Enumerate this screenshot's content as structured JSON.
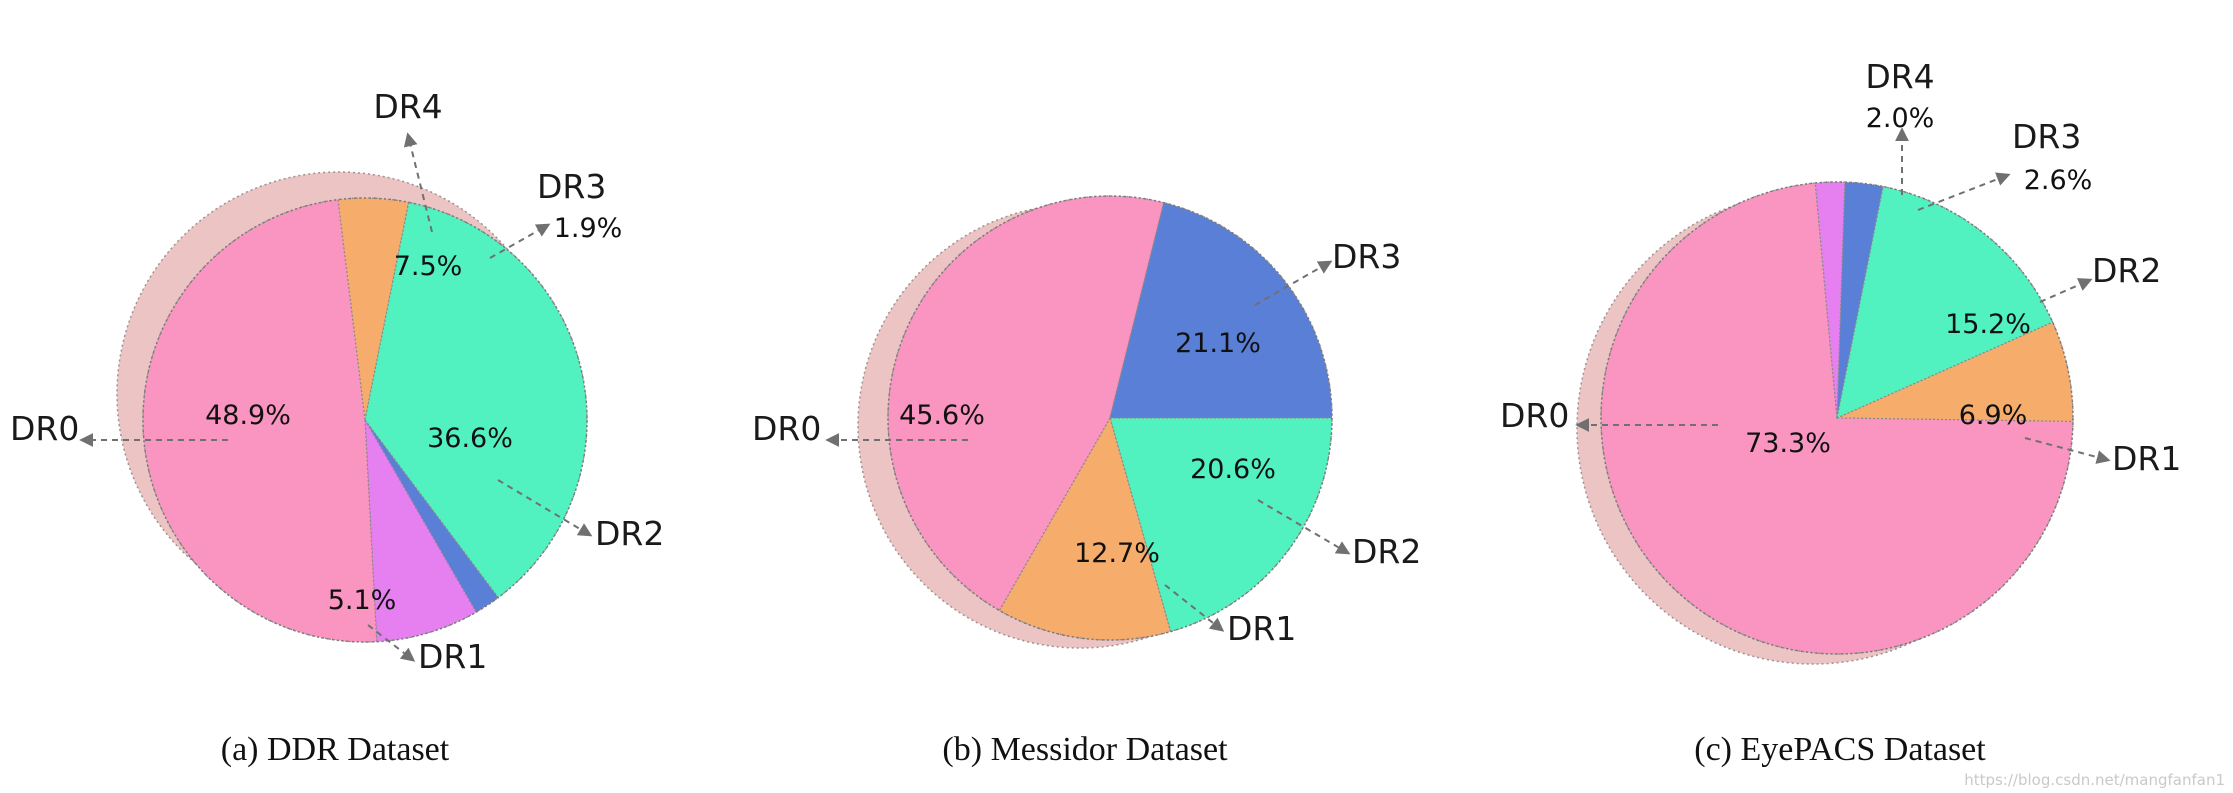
{
  "colors": {
    "DR0": "#f995c0",
    "DR1": "#f6ad6c",
    "DR2": "#52f2c0",
    "DR3": "#5a7fd6",
    "DR4": "#e680f0",
    "shadow": "#ecc4c4",
    "arrow": "#707070"
  },
  "chart_data": [
    {
      "type": "pie",
      "caption": "(a) DDR Dataset",
      "categories": [
        "DR0",
        "DR1",
        "DR2",
        "DR3",
        "DR4"
      ],
      "values": [
        48.9,
        5.1,
        36.6,
        1.9,
        7.5
      ],
      "value_labels": [
        "48.9%",
        "5.1%",
        "36.6%",
        "1.9%",
        "7.5%"
      ]
    },
    {
      "type": "pie",
      "caption": "(b) Messidor Dataset",
      "categories": [
        "DR0",
        "DR1",
        "DR2",
        "DR3"
      ],
      "values": [
        45.6,
        12.7,
        20.6,
        21.1
      ],
      "value_labels": [
        "45.6%",
        "12.7%",
        "20.6%",
        "21.1%"
      ]
    },
    {
      "type": "pie",
      "caption": "(c) EyePACS Dataset",
      "categories": [
        "DR0",
        "DR1",
        "DR2",
        "DR3",
        "DR4"
      ],
      "values": [
        73.3,
        6.9,
        15.2,
        2.6,
        2.0
      ],
      "value_labels": [
        "73.3%",
        "6.9%",
        "15.2%",
        "2.6%",
        "2.0%"
      ]
    }
  ],
  "watermark": "https://blog.csdn.net/mangfanfan1"
}
